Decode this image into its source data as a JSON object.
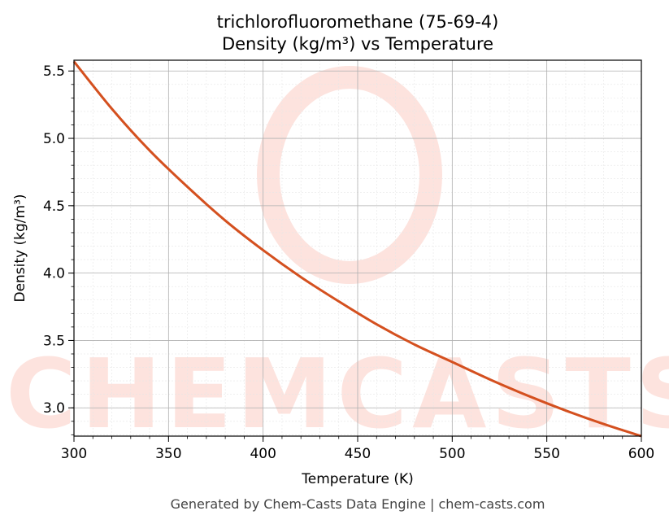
{
  "chart_data": {
    "type": "line",
    "title_line1": "trichlorofluoromethane (75-69-4)",
    "title_line2": "Density (kg/m³) vs Temperature",
    "xlabel": "Temperature (K)",
    "ylabel": "Density (kg/m³)",
    "xlim": [
      300,
      600
    ],
    "ylim": [
      2.79,
      5.58
    ],
    "x_ticks": [
      300,
      350,
      400,
      450,
      500,
      550,
      600
    ],
    "y_ticks": [
      3.0,
      3.5,
      4.0,
      4.5,
      5.0,
      5.5
    ],
    "grid": true,
    "line_color": "#d4501f",
    "series": [
      {
        "x": [
          300,
          320,
          340,
          360,
          380,
          400,
          420,
          440,
          460,
          480,
          500,
          520,
          540,
          560,
          580,
          600
        ],
        "y": [
          5.57,
          5.22,
          4.91,
          4.64,
          4.39,
          4.17,
          3.97,
          3.79,
          3.62,
          3.47,
          3.34,
          3.21,
          3.09,
          2.98,
          2.88,
          2.79
        ]
      }
    ]
  },
  "watermark": "CHEMCASTS",
  "footer": "Generated by Chem-Casts Data Engine | chem-casts.com"
}
